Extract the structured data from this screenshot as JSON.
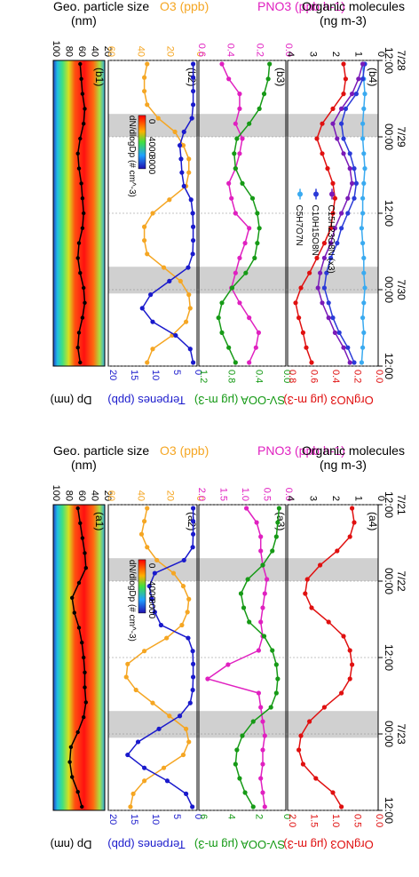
{
  "colors": {
    "size": "#000000",
    "o3": "#f5a623",
    "pno3": "#e020c0",
    "terp": "#1a1acc",
    "svooa": "#169a16",
    "orgno3": "#e01010",
    "c5": "#3aaaf0",
    "c10": "#2a3ad8",
    "c15": "#7a1ab8",
    "night": "#d0d0d0"
  },
  "chart_data": [
    {
      "type": "line",
      "panel_set": "a",
      "time_labels": [
        "12:00\n7/21",
        "00:00\n7/22",
        "12:00",
        "00:00\n7/23",
        "12:00"
      ],
      "night_shading": [
        [
          0.7,
          1.0
        ],
        [
          2.7,
          3.05
        ]
      ],
      "y_axes": {
        "size": {
          "label": "Geo. particle size (nm)",
          "ticks": [
            "100",
            "80",
            "60",
            "40",
            "20"
          ]
        },
        "o3": {
          "label": "O3 (ppb)",
          "ticks": [
            "60",
            "40",
            "20",
            "0"
          ],
          "range": [
            0,
            60
          ]
        },
        "terp": {
          "label": "Terpenes (ppb)",
          "ticks": [
            "20",
            "15",
            "10",
            "5",
            "0"
          ],
          "range": [
            0,
            20
          ]
        },
        "pno3": {
          "label": "P_NO3 (ppb h^-1)",
          "ticks": [
            "2.0",
            "1.5",
            "1.0",
            "0.5",
            "0.0"
          ],
          "range": [
            0,
            2.0
          ]
        },
        "svooa": {
          "label": "SV-OOA (μg m^-3)",
          "ticks": [
            "6",
            "4",
            "2",
            "0"
          ],
          "range": [
            0,
            6
          ]
        },
        "orgno3": {
          "label": "OrgNO3 (μg m^-3)",
          "ticks": [
            "2.0",
            "1.5",
            "1.0",
            "0.5",
            "0.0"
          ],
          "range": [
            0,
            2.0
          ]
        },
        "org_molecules": {
          "label": "Organic molecules (ng m^-3)",
          "ticks": [
            "4",
            "3",
            "2",
            "1",
            "0"
          ]
        }
      },
      "panels": [
        {
          "id": "a1",
          "label": "(a1)",
          "series": [
            {
              "name": "Dp",
              "values": [
                62,
                58,
                54,
                50,
                48,
                60,
                72,
                68,
                60,
                55,
                52,
                50,
                50,
                48,
                52,
                62,
                74,
                76,
                72,
                62,
                55
              ]
            }
          ],
          "colorbar": {
            "label": "dN/dlogDp (# cm^-3)",
            "ticks": [
              "0",
              "4000",
              "8000"
            ]
          }
        },
        {
          "id": "a2",
          "label": "(a2)",
          "series": [
            {
              "name": "O3",
              "values": [
                34,
                36,
                38,
                34,
                27,
                15,
                8,
                4,
                5,
                9,
                20,
                36,
                48,
                49,
                42,
                30,
                18,
                6,
                4,
                8,
                22,
                36,
                44,
                46
              ]
            },
            {
              "name": "Terpenes",
              "values": [
                0.3,
                0.3,
                0.3,
                0.4,
                2.5,
                9.5,
                10.8,
                10.2,
                9.5,
                8.0,
                1.5,
                0.4,
                0.3,
                0.3,
                0.4,
                1.0,
                3.5,
                8.5,
                13.5,
                16.0,
                12.0,
                6.5,
                2.0,
                0.5
              ]
            }
          ]
        },
        {
          "id": "a3",
          "label": "(a3)",
          "series": [
            {
              "name": "P_NO3",
              "values": [
                0.9,
                0.65,
                0.55,
                0.55,
                0.5,
                0.4,
                0.45,
                0.5,
                0.55,
                0.5,
                0.6,
                1.35,
                1.85,
                0.6,
                0.55,
                0.5,
                0.45,
                0.5,
                0.5,
                0.55,
                0.5,
                0.45
              ]
            },
            {
              "name": "SV-OOA",
              "values": [
                0.3,
                0.4,
                0.5,
                0.8,
                1.5,
                2.6,
                3.1,
                2.9,
                2.5,
                1.4,
                0.8,
                0.5,
                0.4,
                0.5,
                0.9,
                2.2,
                3.0,
                3.4,
                3.5,
                3.2,
                2.8,
                2.2
              ]
            }
          ]
        },
        {
          "id": "a4",
          "label": "(a4)",
          "series": [
            {
              "name": "OrgNO3",
              "values": [
                0.55,
                0.5,
                0.6,
                0.9,
                1.3,
                1.6,
                1.65,
                1.5,
                1.1,
                0.75,
                0.6,
                0.55,
                0.6,
                0.8,
                1.2,
                1.55,
                1.75,
                1.8,
                1.7,
                1.4,
                1.0,
                0.8
              ]
            }
          ]
        }
      ]
    },
    {
      "type": "line",
      "panel_set": "b",
      "time_labels": [
        "12:00\n7/28",
        "00:00\n7/29",
        "12:00",
        "00:00\n7/30",
        "12:00"
      ],
      "night_shading": [
        [
          0.7,
          1.0
        ],
        [
          2.7,
          3.05
        ]
      ],
      "y_axes": {
        "size": {
          "label": "Geo. particle size (nm)",
          "ticks": [
            "100",
            "80",
            "60",
            "40",
            "20"
          ]
        },
        "o3": {
          "label": "O3 (ppb)",
          "ticks": [
            "60",
            "40",
            "20",
            "0"
          ],
          "range": [
            0,
            60
          ]
        },
        "terp": {
          "label": "Terpenes (ppb)",
          "ticks": [
            "20",
            "15",
            "10",
            "5",
            "0"
          ],
          "range": [
            0,
            20
          ]
        },
        "pno3": {
          "label": "P_NO3 (ppb h^-1)",
          "ticks": [
            "0.6",
            "0.4",
            "0.2",
            "0.0"
          ],
          "range": [
            0,
            0.6
          ]
        },
        "svooa": {
          "label": "SV-OOA (μg m^-3)",
          "ticks": [
            "1.2",
            "0.8",
            "0.4",
            "0.0"
          ],
          "range": [
            0,
            1.2
          ]
        },
        "orgno3": {
          "label": "OrgNO3 (μg m^-3)",
          "ticks": [
            "0.8",
            "0.6",
            "0.4",
            "0.2",
            "0.0"
          ],
          "range": [
            0,
            0.8
          ]
        },
        "org_molecules": {
          "label": "Organic molecules (ng m^-3)",
          "ticks": [
            "4",
            "3",
            "2",
            "1",
            "0"
          ]
        }
      },
      "panels": [
        {
          "id": "b1",
          "label": "(b1)",
          "series": [
            {
              "name": "Dp",
              "values": [
                58,
                56,
                54,
                50,
                52,
                58,
                62,
                60,
                56,
                54,
                52,
                54,
                60,
                62,
                58,
                52,
                50,
                54,
                60,
                62,
                58
              ]
            }
          ],
          "colorbar": {
            "label": "dN/dlogDp (# cm^-3)",
            "ticks": [
              "0",
              "4000",
              "8000"
            ]
          }
        },
        {
          "id": "b2",
          "label": "(b2)",
          "series": [
            {
              "name": "O3",
              "values": [
                34,
                36,
                36,
                34,
                26,
                14,
                8,
                4,
                4,
                6,
                18,
                30,
                36,
                36,
                34,
                22,
                10,
                4,
                3,
                6,
                16,
                30,
                34
              ]
            },
            {
              "name": "Terpenes",
              "values": [
                0.3,
                0.3,
                0.3,
                0.3,
                0.6,
                2.5,
                3.5,
                3.2,
                3.0,
                2.5,
                0.8,
                0.4,
                0.3,
                0.3,
                0.4,
                1.5,
                6.0,
                10.5,
                12.5,
                10.0,
                4.5,
                1.0,
                0.3
              ]
            }
          ]
        },
        {
          "id": "b3",
          "label": "(b3)",
          "series": [
            {
              "name": "P_NO3",
              "values": [
                0.45,
                0.4,
                0.32,
                0.32,
                0.35,
                0.3,
                0.32,
                0.35,
                0.4,
                0.38,
                0.35,
                0.25,
                0.28,
                0.32,
                0.35,
                0.38,
                0.32,
                0.25,
                0.18,
                0.2,
                0.25
              ]
            },
            {
              "name": "SV-OOA",
              "values": [
                0.2,
                0.22,
                0.28,
                0.35,
                0.5,
                0.68,
                0.72,
                0.7,
                0.6,
                0.45,
                0.38,
                0.35,
                0.38,
                0.42,
                0.55,
                0.75,
                0.9,
                0.95,
                0.9,
                0.8,
                0.7
              ]
            }
          ]
        },
        {
          "id": "b4",
          "label": "(b4)",
          "series": [
            {
              "name": "OrgNO3",
              "values": [
                0.3,
                0.28,
                0.3,
                0.4,
                0.5,
                0.55,
                0.5,
                0.45,
                0.4,
                0.38,
                0.4,
                0.42,
                0.48,
                0.55,
                0.62,
                0.7,
                0.75,
                0.72,
                0.68,
                0.65,
                0.6
              ]
            },
            {
              "name": "C5H7O7N",
              "values": [
                0.6,
                0.55,
                0.5,
                0.55,
                0.6,
                0.6,
                0.55,
                0.5,
                0.55,
                0.6,
                0.6,
                0.65,
                0.6,
                0.55,
                0.55,
                0.5,
                0.55,
                0.6,
                0.55,
                0.6,
                0.65
              ]
            },
            {
              "name": "C10H15O8N",
              "values": [
                0.5,
                0.6,
                0.9,
                1.4,
                1.6,
                1.5,
                1.2,
                1.0,
                0.9,
                1.0,
                1.3,
                1.6,
                1.8,
                2.1,
                2.3,
                2.4,
                2.2,
                2.0,
                1.7,
                1.3,
                1.0
              ]
            },
            {
              "name": "C15H23O8N (x3)",
              "values": [
                0.6,
                0.8,
                1.1,
                1.6,
                2.0,
                1.8,
                1.5,
                1.2,
                1.1,
                1.3,
                1.6,
                1.9,
                2.1,
                2.4,
                2.6,
                2.7,
                2.5,
                2.2,
                1.9,
                1.5,
                1.2
              ]
            }
          ]
        }
      ]
    }
  ],
  "texts": {
    "a_header1": "Geo. particle size",
    "a_header1_unit": "(nm)",
    "o3_label": "O3 (ppb)",
    "pno3_label": "PNO3 (ppb h-1)",
    "org_mol_label": "Organic molecules",
    "org_mol_unit": "(ng m-3)",
    "dp_label": "Dp (nm)",
    "terp_label": "Terpenes (ppb)",
    "svooa_label": "SV-OOA (μg m-3)",
    "orgno3_label": "OrgNO3 (μg m-3)",
    "legend_c5": "C5H7O7N",
    "legend_c10": "C10H15O8N",
    "legend_c15": "C15H23O8N (x3)"
  }
}
